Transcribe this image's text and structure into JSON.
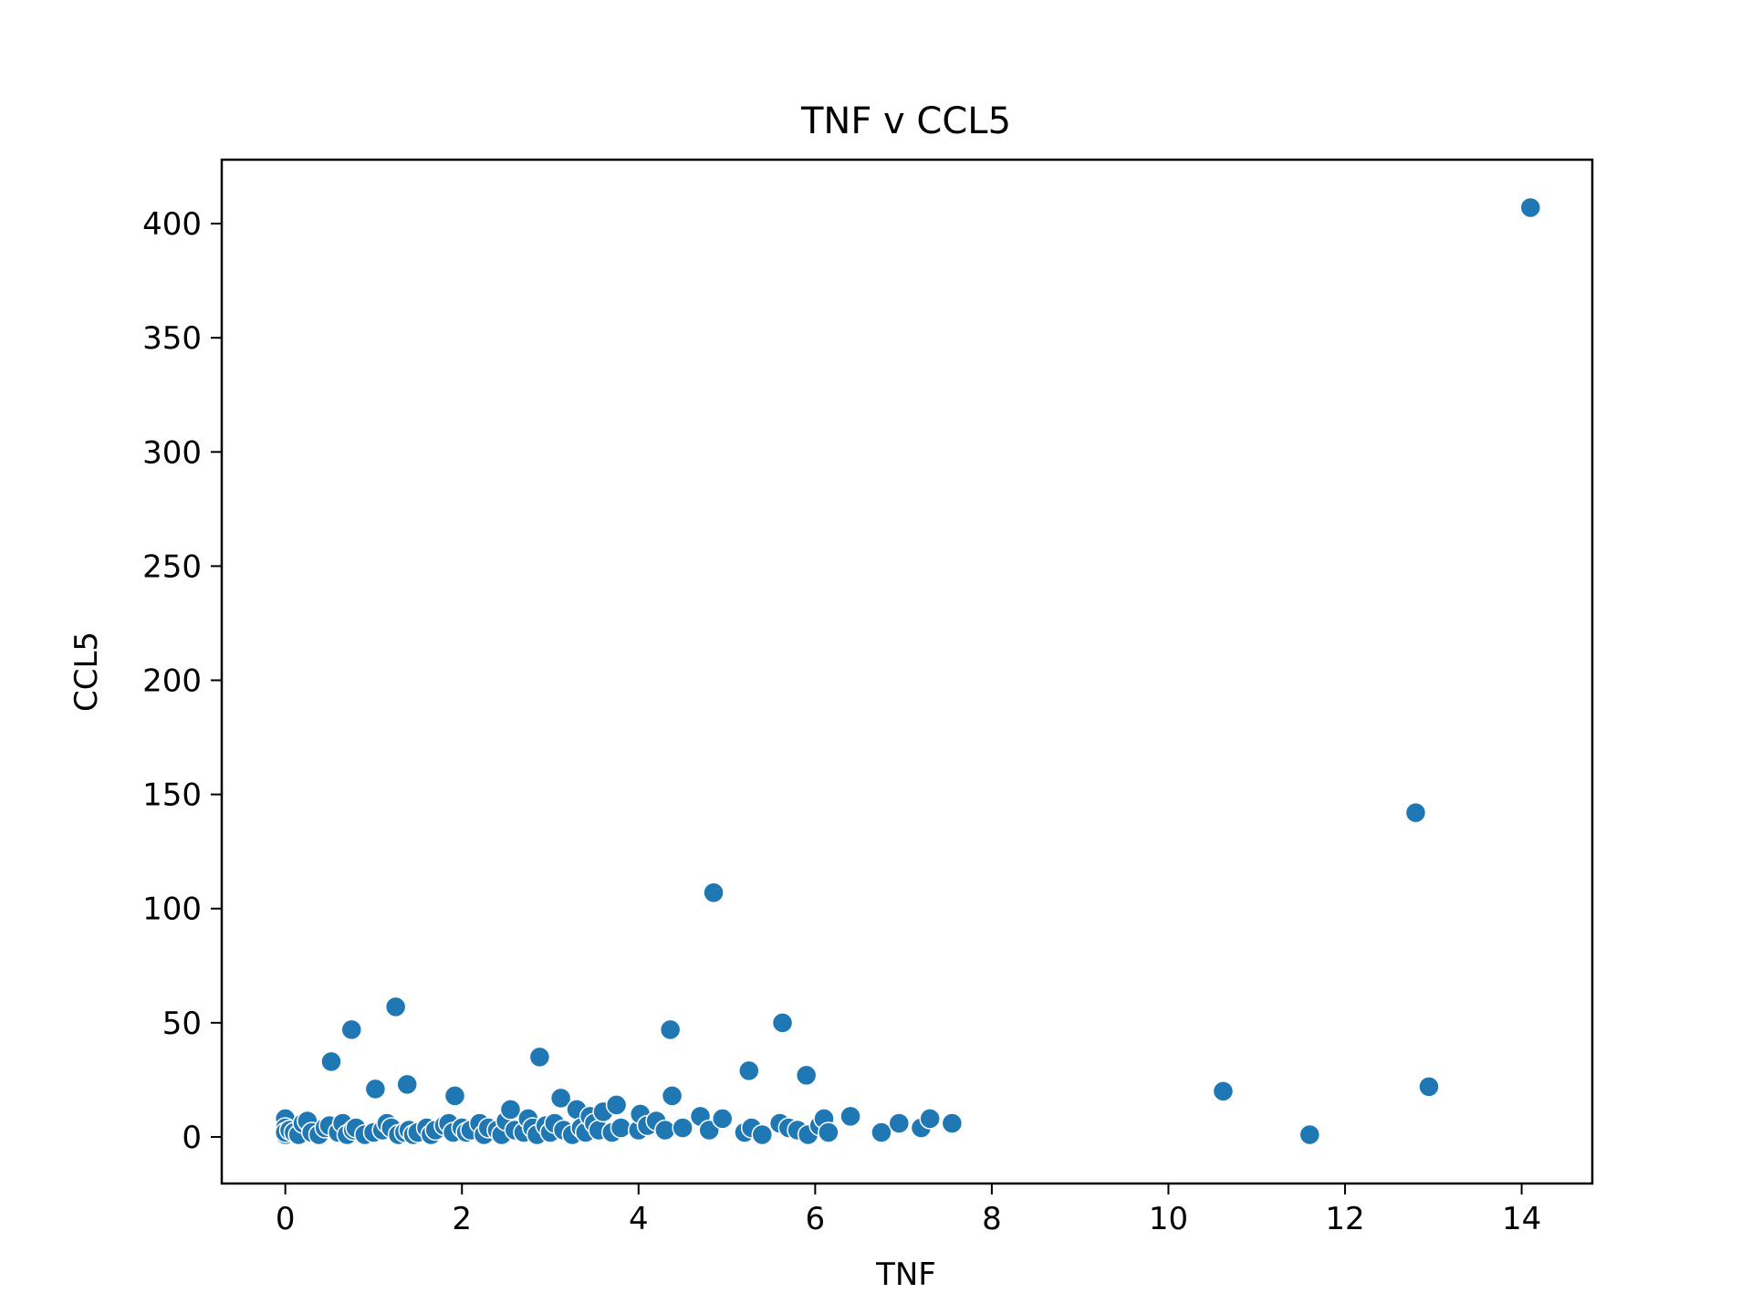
{
  "chart_data": {
    "type": "scatter",
    "title": "TNF v CCL5",
    "xlabel": "TNF",
    "ylabel": "CCL5",
    "xlim": [
      -0.72,
      14.8
    ],
    "ylim": [
      -20.4,
      428
    ],
    "xticks": [
      0,
      2,
      4,
      6,
      8,
      10,
      12,
      14
    ],
    "xtick_labels": [
      "0",
      "2",
      "4",
      "6",
      "8",
      "10",
      "12",
      "14"
    ],
    "yticks": [
      0,
      50,
      100,
      150,
      200,
      250,
      300,
      350,
      400
    ],
    "ytick_labels": [
      "0",
      "50",
      "100",
      "150",
      "200",
      "250",
      "300",
      "350",
      "400"
    ],
    "grid": false,
    "legend": "none",
    "marker_color": "#1f77b4",
    "marker_edge_color": "#ffffff",
    "series": [
      {
        "x": [
          0.0,
          0.0,
          0.0,
          0.0,
          0.05,
          0.1,
          0.15,
          0.2,
          0.25,
          0.3,
          0.38,
          0.45,
          0.5,
          0.52,
          0.6,
          0.65,
          0.7,
          0.75,
          0.77,
          0.8,
          0.9,
          1.0,
          1.02,
          1.1,
          1.15,
          1.2,
          1.25,
          1.28,
          1.35,
          1.38,
          1.4,
          1.45,
          1.5,
          1.6,
          1.65,
          1.7,
          1.8,
          1.85,
          1.9,
          1.92,
          2.0,
          2.05,
          2.1,
          2.2,
          2.25,
          2.3,
          2.4,
          2.45,
          2.5,
          2.55,
          2.6,
          2.7,
          2.75,
          2.8,
          2.85,
          2.88,
          2.95,
          3.0,
          3.05,
          3.12,
          3.15,
          3.25,
          3.3,
          3.35,
          3.4,
          3.45,
          3.5,
          3.55,
          3.6,
          3.7,
          3.75,
          3.8,
          4.0,
          4.02,
          4.1,
          4.2,
          4.3,
          4.36,
          4.38,
          4.5,
          4.7,
          4.8,
          4.85,
          4.95,
          5.2,
          5.25,
          5.28,
          5.4,
          5.6,
          5.63,
          5.7,
          5.8,
          5.9,
          5.92,
          6.05,
          6.1,
          6.15,
          6.4,
          6.75,
          6.95,
          7.2,
          7.3,
          7.55,
          10.62,
          11.6,
          12.8,
          12.95,
          14.1
        ],
        "y": [
          8,
          4,
          1,
          2,
          3,
          2,
          1,
          6,
          7,
          2,
          1,
          4,
          5,
          33,
          2,
          6,
          1,
          47,
          3,
          4,
          1,
          2,
          21,
          3,
          6,
          4,
          57,
          1,
          2,
          23,
          3,
          1,
          2,
          4,
          1,
          3,
          5,
          6,
          2,
          18,
          4,
          2,
          3,
          6,
          1,
          4,
          3,
          1,
          7,
          12,
          3,
          2,
          8,
          4,
          1,
          35,
          5,
          2,
          6,
          17,
          3,
          1,
          12,
          4,
          2,
          9,
          6,
          3,
          11,
          2,
          14,
          4,
          3,
          10,
          5,
          7,
          3,
          47,
          18,
          4,
          9,
          3,
          107,
          8,
          2,
          29,
          4,
          1,
          6,
          50,
          4,
          3,
          27,
          1,
          5,
          8,
          2,
          9,
          2,
          6,
          4,
          8,
          6,
          20,
          1,
          142,
          22,
          407
        ]
      }
    ]
  }
}
